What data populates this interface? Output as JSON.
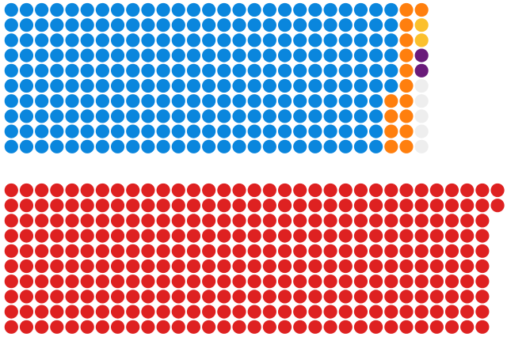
{
  "chart_data": {
    "type": "waffle",
    "title": "",
    "groups": [
      {
        "segments": [
          {
            "count": 256,
            "color": "#0A86DD"
          },
          {
            "count": 15,
            "color": "#FF7F0E"
          },
          {
            "count": 2,
            "color": "#FBC02D"
          },
          {
            "count": 2,
            "color": "#6A1B7A"
          },
          {
            "count": 5,
            "color": "#EEEEEE"
          }
        ]
      },
      {
        "segments": [
          {
            "count": 322,
            "color": "#DE2121"
          }
        ]
      }
    ]
  }
}
